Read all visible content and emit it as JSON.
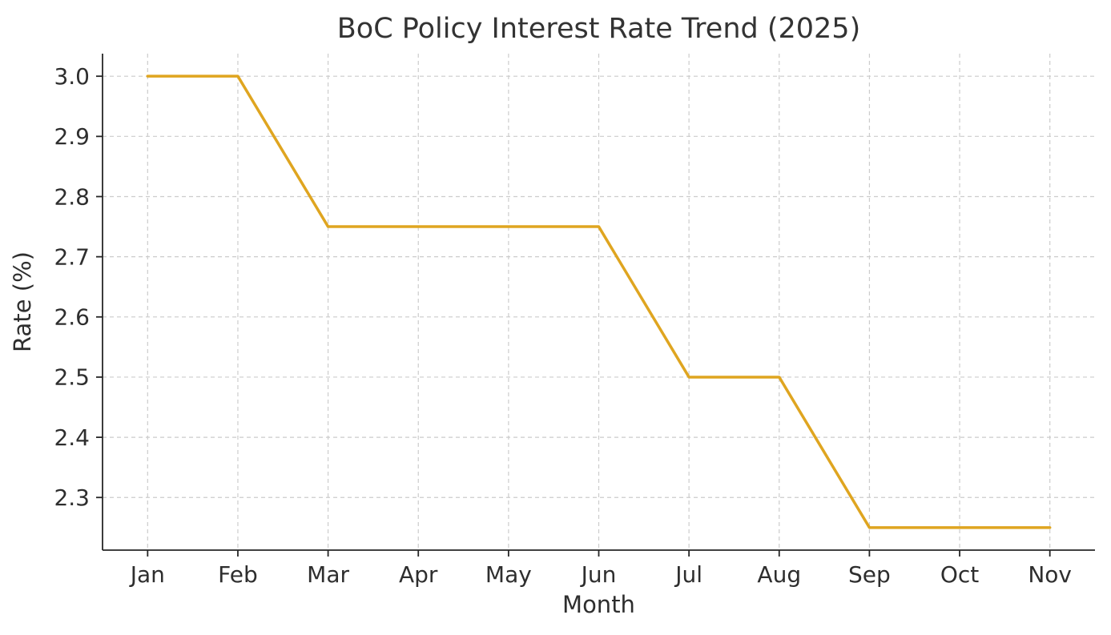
{
  "chart_data": {
    "type": "line",
    "title": "BoC Policy Interest Rate Trend (2025)",
    "xlabel": "Month",
    "ylabel": "Rate (%)",
    "categories": [
      "Jan",
      "Feb",
      "Mar",
      "Apr",
      "May",
      "Jun",
      "Jul",
      "Aug",
      "Sep",
      "Oct",
      "Nov"
    ],
    "values": [
      3.0,
      3.0,
      2.75,
      2.75,
      2.75,
      2.75,
      2.5,
      2.5,
      2.25,
      2.25,
      2.25
    ],
    "series_name": "BoC policy interest rate",
    "ylim": [
      2.2125,
      3.0375
    ],
    "yticks": [
      2.3,
      2.4,
      2.5,
      2.6,
      2.7,
      2.8,
      2.9,
      3.0
    ],
    "ytick_labels": [
      "2.3",
      "2.4",
      "2.5",
      "2.6",
      "2.7",
      "2.8",
      "2.9",
      "3.0"
    ],
    "grid": "dashed",
    "legend_position": "none",
    "line_color": "#DFA520",
    "grid_color": "#cccccc",
    "axis_color": "#262626",
    "text_color": "#2e2e2e"
  }
}
